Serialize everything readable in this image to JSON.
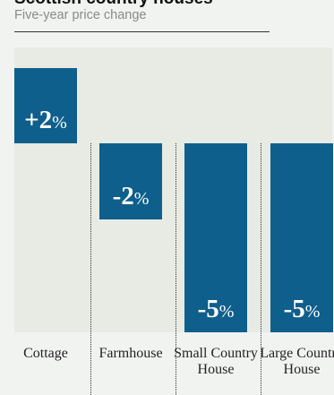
{
  "title": "Scottish country houses",
  "subtitle": "Five-year price change",
  "chart_data": {
    "type": "bar",
    "title": "Scottish country houses",
    "subtitle": "Five-year price change",
    "categories": [
      "Cottage",
      "Farmhouse",
      "Small Country House",
      "Large Country House"
    ],
    "values": [
      2,
      -2,
      -5,
      -5
    ],
    "value_labels": [
      {
        "num": "+2",
        "pct": "%"
      },
      {
        "num": "-2",
        "pct": "%"
      },
      {
        "num": "-5",
        "pct": "%"
      },
      {
        "num": "-5",
        "pct": "%"
      }
    ],
    "unit": "%",
    "ylim": [
      -5,
      2
    ],
    "grid": false,
    "colors": {
      "bar": "#0f5f8c",
      "plot_background": "#e7ebe4",
      "page_background": "#f1f3f1"
    }
  }
}
